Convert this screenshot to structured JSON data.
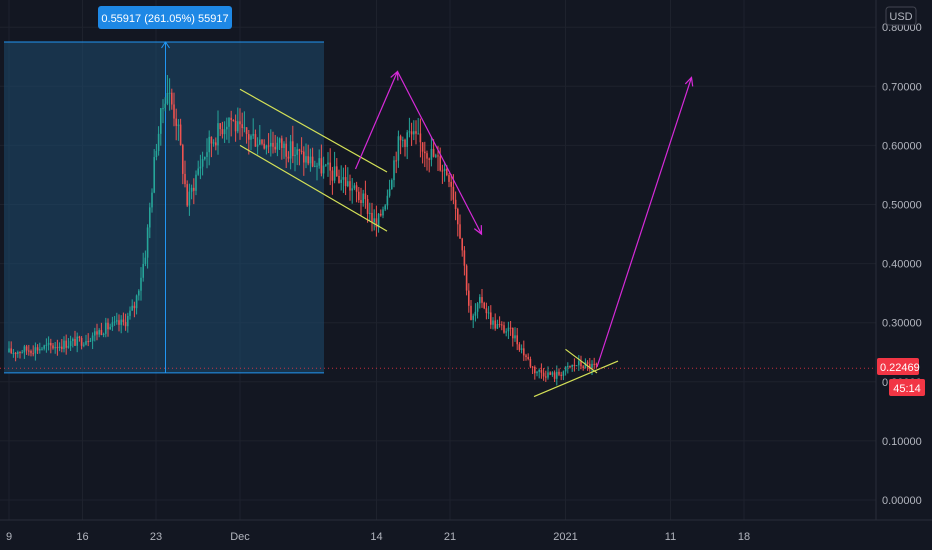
{
  "currency_button": "USD",
  "measure_label": "0.55917 (261.05%) 55917",
  "price_tag": "0.22469",
  "countdown_tag": "45:14",
  "colors": {
    "background": "#131722",
    "grid": "#1e222d",
    "up": "#26a69a",
    "down": "#ef5350",
    "yellow": "#d4e157",
    "magenta": "#d62ad8",
    "measure_fill": "#1e4a6e",
    "measure_line": "#2196f3",
    "price_tag": "#f23645"
  },
  "chart_data": {
    "type": "candlestick",
    "y_ticks": [
      "0.00000",
      "0.10000",
      "0.20000",
      "0.30000",
      "0.40000",
      "0.50000",
      "0.60000",
      "0.70000",
      "0.80000"
    ],
    "x_ticks": [
      "9",
      "16",
      "23",
      "Dec",
      "14",
      "21",
      "2021",
      "11",
      "18"
    ],
    "price_path": [
      [
        "2020-11-09",
        0.25
      ],
      [
        "2020-11-13",
        0.26
      ],
      [
        "2020-11-16",
        0.27
      ],
      [
        "2020-11-18",
        0.29
      ],
      [
        "2020-11-20",
        0.3
      ],
      [
        "2020-11-21",
        0.33
      ],
      [
        "2020-11-22",
        0.42
      ],
      [
        "2020-11-23",
        0.6
      ],
      [
        "2020-11-24",
        0.7
      ],
      [
        "2020-11-25",
        0.64
      ],
      [
        "2020-11-26",
        0.5
      ],
      [
        "2020-11-27",
        0.56
      ],
      [
        "2020-11-28",
        0.6
      ],
      [
        "2020-11-30",
        0.65
      ],
      [
        "2020-12-01",
        0.62
      ],
      [
        "2020-12-03",
        0.61
      ],
      [
        "2020-12-05",
        0.6
      ],
      [
        "2020-12-07",
        0.58
      ],
      [
        "2020-12-09",
        0.56
      ],
      [
        "2020-12-11",
        0.54
      ],
      [
        "2020-12-13",
        0.5
      ],
      [
        "2020-12-14",
        0.46
      ],
      [
        "2020-12-15",
        0.52
      ],
      [
        "2020-12-16",
        0.6
      ],
      [
        "2020-12-17",
        0.62
      ],
      [
        "2020-12-19",
        0.59
      ],
      [
        "2020-12-21",
        0.55
      ],
      [
        "2020-12-22",
        0.45
      ],
      [
        "2020-12-23",
        0.3
      ],
      [
        "2020-12-24",
        0.34
      ],
      [
        "2020-12-25",
        0.3
      ],
      [
        "2020-12-27",
        0.28
      ],
      [
        "2020-12-29",
        0.22
      ],
      [
        "2020-12-31",
        0.21
      ],
      [
        "2021-01-02",
        0.23
      ],
      [
        "2021-01-04",
        0.225
      ]
    ],
    "last_price": 0.22469,
    "grid": true,
    "price_axis": "right"
  }
}
